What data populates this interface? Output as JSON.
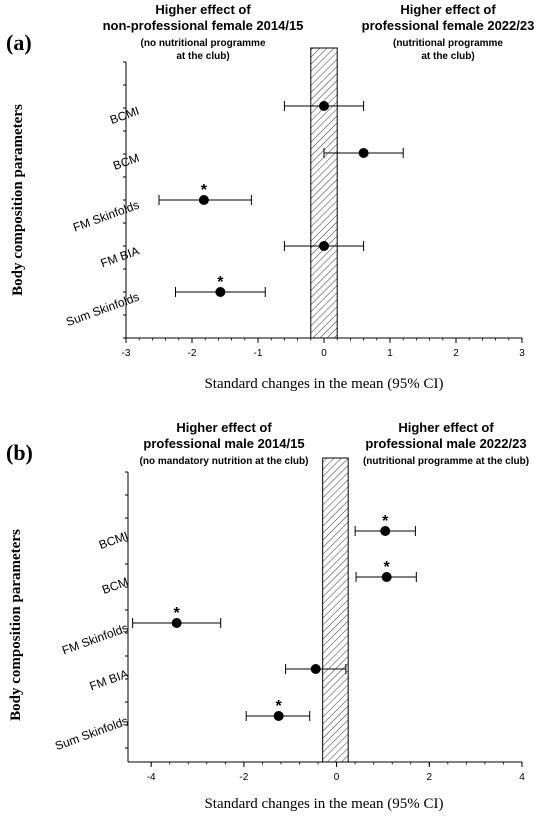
{
  "chart_data": [
    {
      "type": "scatter",
      "panel_label": "(a)",
      "left_note": {
        "lines": [
          "Higher effect of",
          "non-professional female 2014/15"
        ],
        "sub": [
          "(no nutritional programme",
          "at the club)"
        ]
      },
      "right_note": {
        "lines": [
          "Higher effect of",
          "professional female 2022/23"
        ],
        "sub": [
          "(nutritional programme",
          "at the club)"
        ]
      },
      "xlabel": "Standard changes in the mean (95% CI)",
      "ylabel": "Body composition parameters",
      "xlim": [
        -3,
        3
      ],
      "xticks": [
        "-3",
        "-2",
        "-1",
        "0",
        "1",
        "2",
        "3"
      ],
      "xtick_values": [
        -3,
        -2,
        -1,
        0,
        1,
        2,
        3
      ],
      "trivial_band": [
        -0.2,
        0.2
      ],
      "categories": [
        "BCMI",
        "BCM",
        "FM Skinfolds",
        "FM BIA",
        "Sum Skinfolds"
      ],
      "points": [
        {
          "label": "BCMI",
          "mean": 0.0,
          "ci": [
            -0.6,
            0.6
          ],
          "significant": false
        },
        {
          "label": "BCM",
          "mean": 0.6,
          "ci": [
            0.0,
            1.2
          ],
          "significant": false
        },
        {
          "label": "FM Skinfolds",
          "mean": -1.82,
          "ci": [
            -2.5,
            -1.1
          ],
          "significant": true
        },
        {
          "label": "FM BIA",
          "mean": 0.0,
          "ci": [
            -0.6,
            0.6
          ],
          "significant": false
        },
        {
          "label": "Sum Skinfolds",
          "mean": -1.57,
          "ci": [
            -2.25,
            -0.89
          ],
          "significant": true
        }
      ],
      "significance_marker": "*"
    },
    {
      "type": "scatter",
      "panel_label": "(b)",
      "left_note": {
        "lines": [
          "Higher effect of",
          "professional male 2014/15"
        ],
        "sub": [
          "(no mandatory nutrition at the club)"
        ]
      },
      "right_note": {
        "lines": [
          "Higher effect of",
          "professional male 2022/23"
        ],
        "sub": [
          "(nutritional programme at the club)"
        ]
      },
      "xlabel": "Standard changes in the mean (95% CI)",
      "ylabel": "Body composition parameters",
      "xlim": [
        -4.5,
        4
      ],
      "xticks": [
        "-4",
        "-2",
        "0",
        "2",
        "4"
      ],
      "xtick_values": [
        -4,
        -2,
        0,
        2,
        4
      ],
      "trivial_band": [
        -0.3,
        0.25
      ],
      "categories": [
        "BCMI",
        "BCM",
        "FM Skinfolds",
        "FM BIA",
        "Sum Skinfolds"
      ],
      "points": [
        {
          "label": "BCMI",
          "mean": 1.05,
          "ci": [
            0.4,
            1.7
          ],
          "significant": true
        },
        {
          "label": "BCM",
          "mean": 1.08,
          "ci": [
            0.42,
            1.72
          ],
          "significant": true
        },
        {
          "label": "FM Skinfolds",
          "mean": -3.45,
          "ci": [
            -4.4,
            -2.5
          ],
          "significant": true
        },
        {
          "label": "FM BIA",
          "mean": -0.45,
          "ci": [
            -1.1,
            0.2
          ],
          "significant": false
        },
        {
          "label": "Sum Skinfolds",
          "mean": -1.25,
          "ci": [
            -1.95,
            -0.58
          ],
          "significant": true
        }
      ],
      "significance_marker": "*"
    }
  ]
}
